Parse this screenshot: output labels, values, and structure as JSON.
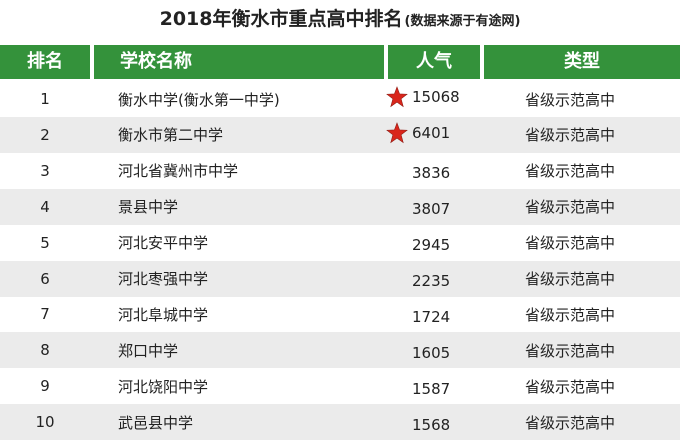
{
  "header": {
    "title": "2018年衡水市重点高中排名",
    "subtitle": "(数据来源于有途网)"
  },
  "table": {
    "columns": [
      "排名",
      "学校名称",
      "人气",
      "类型"
    ],
    "rows": [
      [
        1,
        "衡水中学(衡水第一中学)",
        15068,
        "省级示范高中"
      ],
      [
        2,
        "衡水市第二中学",
        6401,
        "省级示范高中"
      ],
      [
        3,
        "河北省冀州市中学",
        3836,
        "省级示范高中"
      ],
      [
        4,
        "景县中学",
        3807,
        "省级示范高中"
      ],
      [
        5,
        "河北安平中学",
        2945,
        "省级示范高中"
      ],
      [
        6,
        "河北枣强中学",
        2235,
        "省级示范高中"
      ],
      [
        7,
        "河北阜城中学",
        1724,
        "省级示范高中"
      ],
      [
        8,
        "郑口中学",
        1605,
        "省级示范高中"
      ],
      [
        9,
        "河北饶阳中学",
        1587,
        "省级示范高中"
      ],
      [
        10,
        "武邑县中学",
        1568,
        "省级示范高中"
      ]
    ]
  }
}
